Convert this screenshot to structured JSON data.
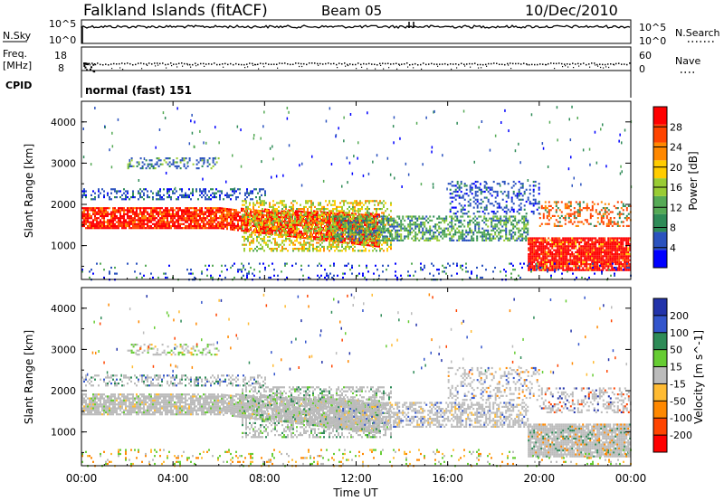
{
  "header": {
    "station": "Falkland Islands (fitACF)",
    "beam": "Beam 05",
    "date": "10/Dec/2010"
  },
  "side_labels": {
    "nsky": "N.Sky",
    "freq": "Freq.",
    "freq_unit": "[MHz]",
    "cpid": "CPID",
    "nsearch": "N.Search",
    "nave": "Nave"
  },
  "cpid_text": "normal (fast) 151",
  "colors": {
    "power_scale": [
      "#0000ff",
      "#2a52be",
      "#2e8b57",
      "#55aa55",
      "#99cc33",
      "#ffcc00",
      "#ff8800",
      "#ff4400",
      "#ff0000"
    ],
    "velocity_scale": [
      "#2233aa",
      "#3355cc",
      "#2e8b57",
      "#66cc33",
      "#bbbbbb",
      "#ffbb33",
      "#ff8800",
      "#ff4400",
      "#ff0000"
    ],
    "ground_scatter": "#bbbbbb"
  },
  "chart_data": [
    {
      "type": "line",
      "name": "noise",
      "series": [
        {
          "name": "N.Sky",
          "level": "10^5"
        },
        {
          "name": "N.Search"
        }
      ],
      "ylim_labels": [
        "10^0",
        "10^5"
      ],
      "right_ylim_labels": [
        "10^0",
        "10^5"
      ]
    },
    {
      "type": "scatter",
      "name": "frequency-nave",
      "left_ticks": [
        "8",
        "18"
      ],
      "right_ticks": [
        "0",
        "60"
      ]
    },
    {
      "type": "heatmap",
      "title": "",
      "ylabel": "Slant Range [km]",
      "y_ticks": [
        "1000",
        "2000",
        "3000",
        "4000"
      ],
      "colorbar": {
        "label": "Power [dB]",
        "ticks": [
          "4",
          "8",
          "12",
          "16",
          "20",
          "24",
          "28"
        ]
      },
      "bands": [
        {
          "start": 0,
          "end": 20,
          "range_low": 1500,
          "range_high": 2000,
          "level": 28
        },
        {
          "start": 20,
          "end": 24,
          "range_low": 400,
          "range_high": 1200,
          "level": 28
        },
        {
          "start": 7,
          "end": 13,
          "range_low": 900,
          "range_high": 2100,
          "level": 16
        },
        {
          "start": 11,
          "end": 19,
          "range_low": 1200,
          "range_high": 1700,
          "level": 12
        },
        {
          "start": 2,
          "end": 6,
          "range_low": 2900,
          "range_high": 3100,
          "level": 8
        }
      ]
    },
    {
      "type": "heatmap",
      "title": "",
      "ylabel": "Slant Range [km]",
      "y_ticks": [
        "1000",
        "2000",
        "3000",
        "4000"
      ],
      "colorbar": {
        "label": "Velocity [m s^-1]",
        "ticks": [
          "200",
          "100",
          "50",
          "15",
          "-15",
          "-50",
          "-100",
          "-200"
        ]
      }
    }
  ],
  "x_axis": {
    "label": "Time UT",
    "ticks": [
      "00:00",
      "04:00",
      "08:00",
      "12:00",
      "16:00",
      "20:00",
      "00:00"
    ]
  }
}
